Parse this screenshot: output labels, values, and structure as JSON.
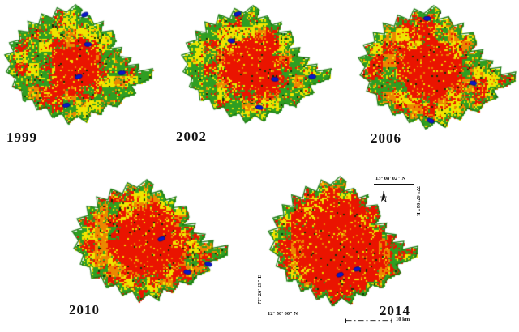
{
  "maps": [
    {
      "year": "1999",
      "seed": 1999,
      "core": 0.3,
      "outer": {
        "green": 0.38,
        "yellow": 0.36,
        "orange": 0.12,
        "red": 0.14
      },
      "lakes": [
        [
          0.54,
          0.1
        ],
        [
          0.56,
          0.33
        ],
        [
          0.5,
          0.58
        ],
        [
          0.78,
          0.55
        ],
        [
          0.42,
          0.8
        ]
      ]
    },
    {
      "year": "2002",
      "seed": 2002,
      "core": 0.34,
      "outer": {
        "green": 0.34,
        "yellow": 0.38,
        "orange": 0.12,
        "red": 0.16
      },
      "lakes": [
        [
          0.38,
          0.09
        ],
        [
          0.34,
          0.3
        ],
        [
          0.62,
          0.6
        ],
        [
          0.86,
          0.58
        ],
        [
          0.52,
          0.82
        ]
      ]
    },
    {
      "year": "2006",
      "seed": 2006,
      "core": 0.33,
      "outer": {
        "green": 0.16,
        "yellow": 0.3,
        "orange": 0.34,
        "red": 0.2
      },
      "lakes": [
        [
          0.44,
          0.12
        ],
        [
          0.72,
          0.6
        ],
        [
          0.46,
          0.88
        ]
      ]
    },
    {
      "year": "2010",
      "seed": 2010,
      "core": 0.4,
      "outer": {
        "green": 0.18,
        "yellow": 0.28,
        "orange": 0.26,
        "red": 0.28
      },
      "lakes": [
        [
          0.57,
          0.47
        ],
        [
          0.73,
          0.72
        ],
        [
          0.86,
          0.66
        ]
      ]
    },
    {
      "year": "2014",
      "seed": 2014,
      "core": 0.52,
      "outer": {
        "green": 0.08,
        "yellow": 0.26,
        "orange": 0.16,
        "red": 0.5
      },
      "lakes": [
        [
          0.48,
          0.72
        ],
        [
          0.59,
          0.68
        ]
      ]
    }
  ],
  "colors": {
    "red": "#ea1400",
    "green": "#2f9e22",
    "yellow": "#efe600",
    "orange": "#ec8800",
    "blue": "#0a18c8",
    "dark": "#123007",
    "outline": "#1d7a12",
    "label": "#111111"
  },
  "annotations": {
    "top_latitude": "13° 08' 02\" N",
    "right_longitude": "77° 47' 02\" E",
    "left_longitude": "77° 26' 29\" E",
    "bottom_latitude": "12° 50' 00\" N",
    "scale_label": "10 km"
  }
}
